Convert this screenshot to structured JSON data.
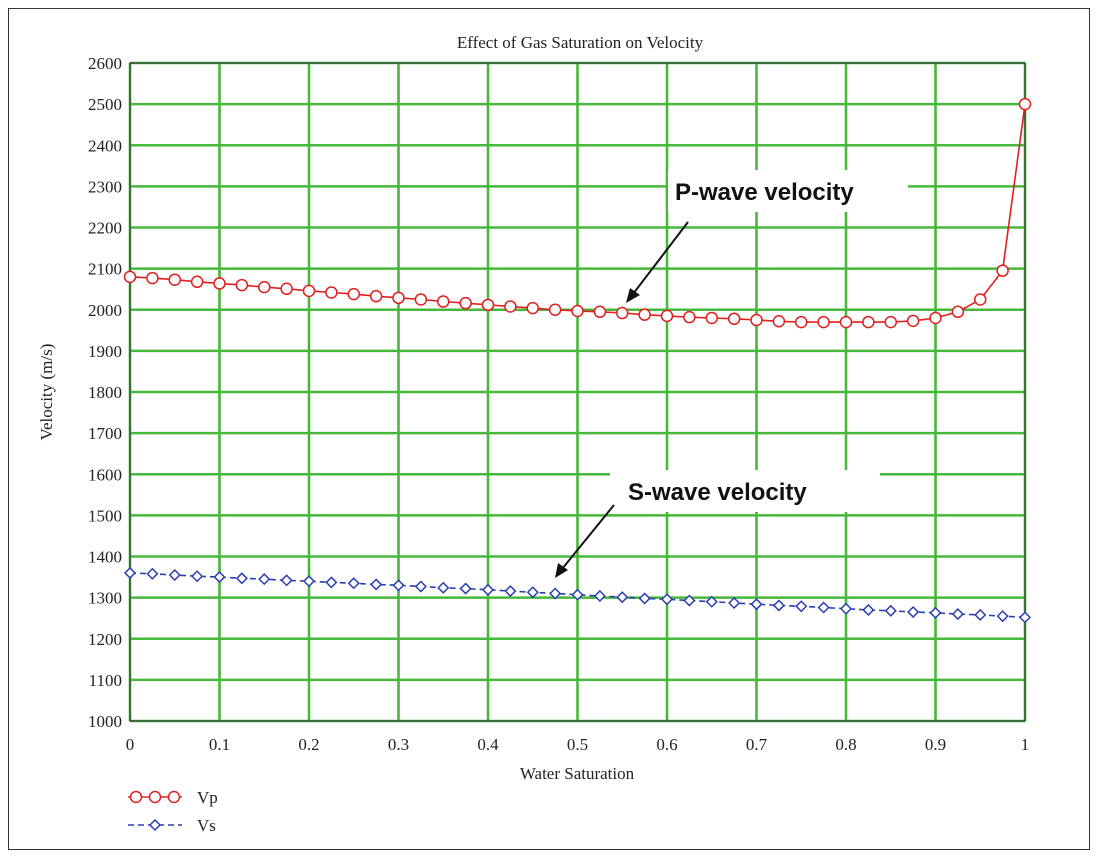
{
  "chart_data": {
    "type": "line",
    "title": "Effect of Gas Saturation on Velocity",
    "xlabel": "Water Saturation",
    "ylabel": "Velocity (m/s)",
    "xlim": [
      0,
      1
    ],
    "ylim": [
      1000,
      2600
    ],
    "x_ticks": [
      0,
      0.1,
      0.2,
      0.3,
      0.4,
      0.5,
      0.6,
      0.7,
      0.8,
      0.9,
      1
    ],
    "x_tick_labels": [
      "0",
      "0.1",
      "0.2",
      "0.3",
      "0.4",
      "0.5",
      "0.6",
      "0.7",
      "0.8",
      "0.9",
      "1"
    ],
    "y_ticks": [
      1000,
      1100,
      1200,
      1300,
      1400,
      1500,
      1600,
      1700,
      1800,
      1900,
      2000,
      2100,
      2200,
      2300,
      2400,
      2500,
      2600
    ],
    "grid": true,
    "x": [
      0,
      0.025,
      0.05,
      0.075,
      0.1,
      0.125,
      0.15,
      0.175,
      0.2,
      0.225,
      0.25,
      0.275,
      0.3,
      0.325,
      0.35,
      0.375,
      0.4,
      0.425,
      0.45,
      0.475,
      0.5,
      0.525,
      0.55,
      0.575,
      0.6,
      0.625,
      0.65,
      0.675,
      0.7,
      0.725,
      0.75,
      0.775,
      0.8,
      0.825,
      0.85,
      0.875,
      0.9,
      0.925,
      0.95,
      0.975,
      1
    ],
    "series": [
      {
        "name": "Vp",
        "color": "#e02020",
        "marker": "circle",
        "line_style": "solid",
        "values": [
          2080,
          2077,
          2073,
          2068,
          2064,
          2060,
          2055,
          2051,
          2046,
          2042,
          2038,
          2033,
          2029,
          2025,
          2020,
          2016,
          2012,
          2008,
          2004,
          2000,
          1997,
          1995,
          1992,
          1988,
          1985,
          1982,
          1980,
          1978,
          1975,
          1972,
          1970,
          1970,
          1970,
          1970,
          1970,
          1973,
          1980,
          1995,
          2025,
          2095,
          2500
        ]
      },
      {
        "name": "Vs",
        "color": "#2a3fb0",
        "marker": "diamond",
        "line_style": "dashed",
        "values": [
          1360,
          1358,
          1355,
          1352,
          1350,
          1347,
          1345,
          1342,
          1340,
          1337,
          1335,
          1332,
          1330,
          1327,
          1324,
          1322,
          1319,
          1316,
          1313,
          1310,
          1307,
          1304,
          1301,
          1298,
          1296,
          1293,
          1290,
          1287,
          1284,
          1281,
          1279,
          1276,
          1273,
          1270,
          1268,
          1265,
          1263,
          1260,
          1258,
          1255,
          1252
        ]
      }
    ],
    "annotations": [
      {
        "text": "P-wave velocity",
        "arrow_to": {
          "x": 0.56,
          "y": 1995
        }
      },
      {
        "text": "S-wave velocity",
        "arrow_to": {
          "x": 0.47,
          "y": 1320
        }
      }
    ],
    "legend": {
      "placement": "bottom-left",
      "entries": [
        "Vp",
        "Vs"
      ]
    }
  }
}
